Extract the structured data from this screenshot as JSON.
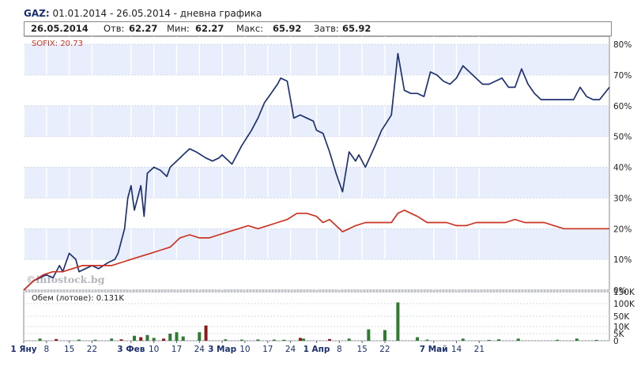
{
  "header": {
    "ticker": "GAZ:",
    "period": "01.01.2014 - 26.05.2014 - дневна графика"
  },
  "summary": {
    "date": "26.05.2014",
    "open_label": "Отв:",
    "open": "62.27",
    "low_label": "Мин:",
    "low": "62.27",
    "high_label": "Макс:",
    "high": "65.92",
    "close_label": "Затв:",
    "close": "65.92"
  },
  "colors": {
    "gaz": "#1f3272",
    "sofix": "#cc3322",
    "band": "#e8eefb",
    "vol_up": "#2e7a2e",
    "vol_down": "#8b1a1a"
  },
  "chart_data": [
    {
      "type": "line",
      "x_labels": [
        "1 Яну",
        "8",
        "15",
        "22",
        "3 Фев",
        "10",
        "17",
        "24",
        "3 Мар",
        "10",
        "17",
        "24",
        "1 Апр",
        "8",
        "15",
        "22",
        "7 Май",
        "14",
        "21"
      ],
      "y_ticks": [
        "0%",
        "10%",
        "20%",
        "30%",
        "40%",
        "50%",
        "60%",
        "70%",
        "80%"
      ],
      "ylim": [
        0,
        80
      ],
      "y_axis_side": "right",
      "sofix_label": "SOFIX: 20.73",
      "watermark": "©infostock.bg",
      "series": [
        {
          "name": "GAZ",
          "points": [
            [
              0,
              0
            ],
            [
              3,
              3
            ],
            [
              5,
              4
            ],
            [
              7,
              5
            ],
            [
              9,
              4
            ],
            [
              11,
              8
            ],
            [
              12,
              6
            ],
            [
              14,
              12
            ],
            [
              16,
              10
            ],
            [
              17,
              6
            ],
            [
              19,
              7
            ],
            [
              21,
              8
            ],
            [
              23,
              7
            ],
            [
              26,
              9
            ],
            [
              28,
              10
            ],
            [
              29,
              12
            ],
            [
              31,
              20
            ],
            [
              32,
              30
            ],
            [
              33,
              34
            ],
            [
              34,
              26
            ],
            [
              35,
              30
            ],
            [
              36,
              34
            ],
            [
              37,
              24
            ],
            [
              38,
              38
            ],
            [
              40,
              40
            ],
            [
              42,
              39
            ],
            [
              44,
              37
            ],
            [
              45,
              40
            ],
            [
              47,
              42
            ],
            [
              49,
              44
            ],
            [
              51,
              46
            ],
            [
              53,
              45
            ],
            [
              56,
              43
            ],
            [
              58,
              42
            ],
            [
              60,
              43
            ],
            [
              61,
              44
            ],
            [
              62,
              43
            ],
            [
              64,
              41
            ],
            [
              67,
              47
            ],
            [
              70,
              52
            ],
            [
              72,
              56
            ],
            [
              74,
              61
            ],
            [
              76,
              64
            ],
            [
              78,
              67
            ],
            [
              79,
              69
            ],
            [
              81,
              68
            ],
            [
              82,
              62
            ],
            [
              83,
              56
            ],
            [
              85,
              57
            ],
            [
              87,
              56
            ],
            [
              89,
              55
            ],
            [
              90,
              52
            ],
            [
              92,
              51
            ],
            [
              94,
              45
            ],
            [
              96,
              38
            ],
            [
              98,
              32
            ],
            [
              100,
              45
            ],
            [
              102,
              42
            ],
            [
              103,
              44
            ],
            [
              105,
              40
            ],
            [
              108,
              47
            ],
            [
              110,
              52
            ],
            [
              113,
              57
            ],
            [
              115,
              77
            ],
            [
              117,
              65
            ],
            [
              119,
              64
            ],
            [
              121,
              64
            ],
            [
              123,
              63
            ],
            [
              125,
              71
            ],
            [
              127,
              70
            ],
            [
              129,
              68
            ],
            [
              131,
              67
            ],
            [
              133,
              69
            ],
            [
              135,
              73
            ],
            [
              137,
              71
            ],
            [
              139,
              69
            ],
            [
              141,
              67
            ],
            [
              143,
              67
            ],
            [
              145,
              68
            ],
            [
              147,
              69
            ],
            [
              149,
              66
            ],
            [
              151,
              66
            ],
            [
              153,
              72
            ],
            [
              155,
              67
            ],
            [
              157,
              64
            ],
            [
              159,
              62
            ],
            [
              161,
              62
            ],
            [
              163,
              62
            ],
            [
              165,
              62
            ],
            [
              167,
              62
            ],
            [
              169,
              62
            ],
            [
              171,
              66
            ],
            [
              173,
              63
            ],
            [
              175,
              62
            ],
            [
              177,
              62
            ],
            [
              180,
              66
            ]
          ]
        },
        {
          "name": "SOFIX",
          "points": [
            [
              0,
              0
            ],
            [
              3,
              3
            ],
            [
              6,
              5
            ],
            [
              9,
              6
            ],
            [
              12,
              6
            ],
            [
              15,
              7
            ],
            [
              18,
              8
            ],
            [
              21,
              8
            ],
            [
              24,
              8
            ],
            [
              27,
              8
            ],
            [
              30,
              9
            ],
            [
              33,
              10
            ],
            [
              36,
              11
            ],
            [
              39,
              12
            ],
            [
              42,
              13
            ],
            [
              45,
              14
            ],
            [
              48,
              17
            ],
            [
              51,
              18
            ],
            [
              54,
              17
            ],
            [
              57,
              17
            ],
            [
              60,
              18
            ],
            [
              63,
              19
            ],
            [
              66,
              20
            ],
            [
              69,
              21
            ],
            [
              72,
              20
            ],
            [
              75,
              21
            ],
            [
              78,
              22
            ],
            [
              81,
              23
            ],
            [
              84,
              25
            ],
            [
              87,
              25
            ],
            [
              90,
              24
            ],
            [
              92,
              22
            ],
            [
              94,
              23
            ],
            [
              96,
              21
            ],
            [
              98,
              19
            ],
            [
              100,
              20
            ],
            [
              102,
              21
            ],
            [
              105,
              22
            ],
            [
              108,
              22
            ],
            [
              111,
              22
            ],
            [
              113,
              22
            ],
            [
              115,
              25
            ],
            [
              117,
              26
            ],
            [
              119,
              25
            ],
            [
              121,
              24
            ],
            [
              124,
              22
            ],
            [
              127,
              22
            ],
            [
              130,
              22
            ],
            [
              133,
              21
            ],
            [
              136,
              21
            ],
            [
              139,
              22
            ],
            [
              142,
              22
            ],
            [
              145,
              22
            ],
            [
              148,
              22
            ],
            [
              151,
              23
            ],
            [
              154,
              22
            ],
            [
              157,
              22
            ],
            [
              160,
              22
            ],
            [
              163,
              21
            ],
            [
              166,
              20
            ],
            [
              169,
              20
            ],
            [
              172,
              20
            ],
            [
              175,
              20
            ],
            [
              178,
              20
            ],
            [
              180,
              20
            ]
          ]
        }
      ]
    },
    {
      "type": "bar",
      "title": "Обем (лотове): 0.131K",
      "y_ticks": [
        "0",
        "5K",
        "10K",
        "50K",
        "100K",
        "150K"
      ],
      "ylim": [
        0,
        150000
      ],
      "bars": [
        [
          5,
          1500,
          "up"
        ],
        [
          10,
          1200,
          "down"
        ],
        [
          17,
          800,
          "up"
        ],
        [
          22,
          700,
          "up"
        ],
        [
          27,
          1500,
          "up"
        ],
        [
          30,
          1000,
          "down"
        ],
        [
          34,
          3500,
          "up"
        ],
        [
          36,
          2500,
          "down"
        ],
        [
          38,
          4000,
          "up"
        ],
        [
          40,
          2000,
          "up"
        ],
        [
          43,
          1500,
          "down"
        ],
        [
          45,
          5000,
          "up"
        ],
        [
          47,
          6000,
          "up"
        ],
        [
          49,
          3000,
          "up"
        ],
        [
          54,
          6000,
          "up"
        ],
        [
          56,
          14000,
          "down"
        ],
        [
          62,
          1000,
          "up"
        ],
        [
          67,
          800,
          "up"
        ],
        [
          72,
          900,
          "up"
        ],
        [
          77,
          800,
          "up"
        ],
        [
          80,
          700,
          "up"
        ],
        [
          85,
          2000,
          "down"
        ],
        [
          86,
          1500,
          "up"
        ],
        [
          94,
          1200,
          "down"
        ],
        [
          100,
          1500,
          "up"
        ],
        [
          106,
          8000,
          "up"
        ],
        [
          111,
          7500,
          "up"
        ],
        [
          115,
          105000,
          "up"
        ],
        [
          121,
          2500,
          "up"
        ],
        [
          124,
          800,
          "up"
        ],
        [
          135,
          1500,
          "up"
        ],
        [
          143,
          600,
          "up"
        ],
        [
          146,
          1000,
          "up"
        ],
        [
          152,
          1500,
          "up"
        ],
        [
          164,
          700,
          "up"
        ],
        [
          170,
          1500,
          "up"
        ],
        [
          176,
          600,
          "up"
        ]
      ]
    }
  ]
}
